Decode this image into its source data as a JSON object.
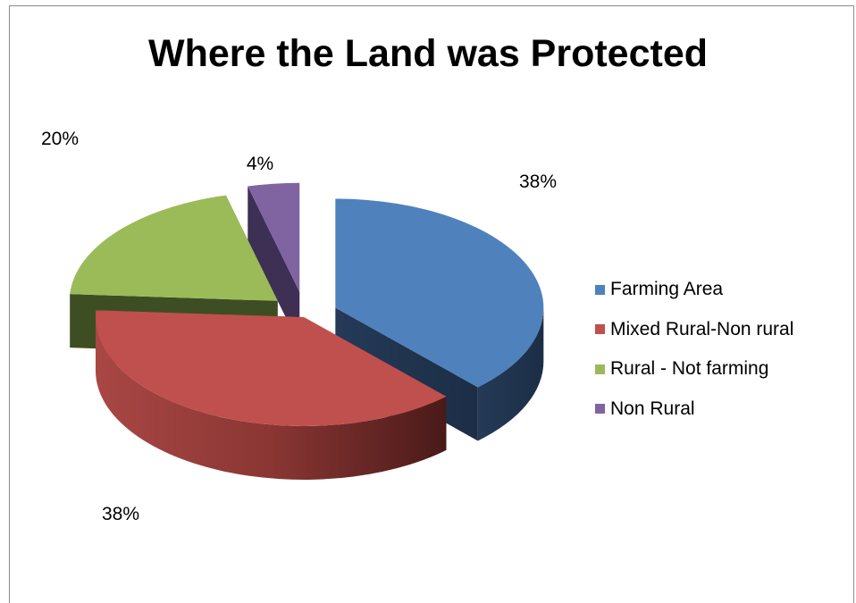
{
  "chart_data": {
    "type": "pie",
    "title": "Where the Land was Protected",
    "slices": [
      {
        "label": "Farming Area",
        "value": 38,
        "value_label": "38%",
        "color": "#4f81bd"
      },
      {
        "label": "Mixed Rural-Non rural",
        "value": 38,
        "value_label": "38%",
        "color": "#c0504d"
      },
      {
        "label": "Rural - Not farming",
        "value": 20,
        "value_label": "20%",
        "color": "#9bbb59"
      },
      {
        "label": "Non Rural",
        "value": 4,
        "value_label": "4%",
        "color": "#8064a2"
      }
    ],
    "exploded": true,
    "three_d": true,
    "legend_position": "right"
  }
}
